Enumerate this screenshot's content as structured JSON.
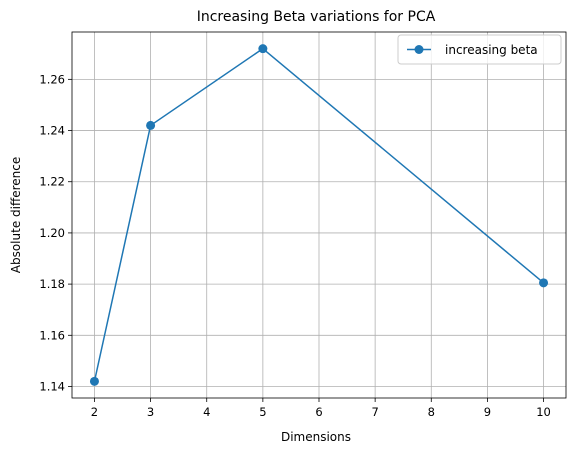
{
  "chart_data": {
    "type": "line",
    "title": "Increasing Beta variations for PCA",
    "xlabel": "Dimensions",
    "ylabel": "Absolute difference",
    "xlim": [
      1.6,
      10.4
    ],
    "ylim": [
      1.1355,
      1.2785
    ],
    "xticks": [
      2,
      3,
      4,
      5,
      6,
      7,
      8,
      9,
      10
    ],
    "yticks": [
      1.14,
      1.16,
      1.18,
      1.2,
      1.22,
      1.24,
      1.26
    ],
    "grid": true,
    "legend_position": "top-right",
    "series": [
      {
        "name": "increasing beta",
        "color": "#1f77b4",
        "marker": "circle",
        "x": [
          2,
          3,
          5,
          10
        ],
        "y": [
          1.142,
          1.242,
          1.272,
          1.1805
        ]
      }
    ]
  }
}
